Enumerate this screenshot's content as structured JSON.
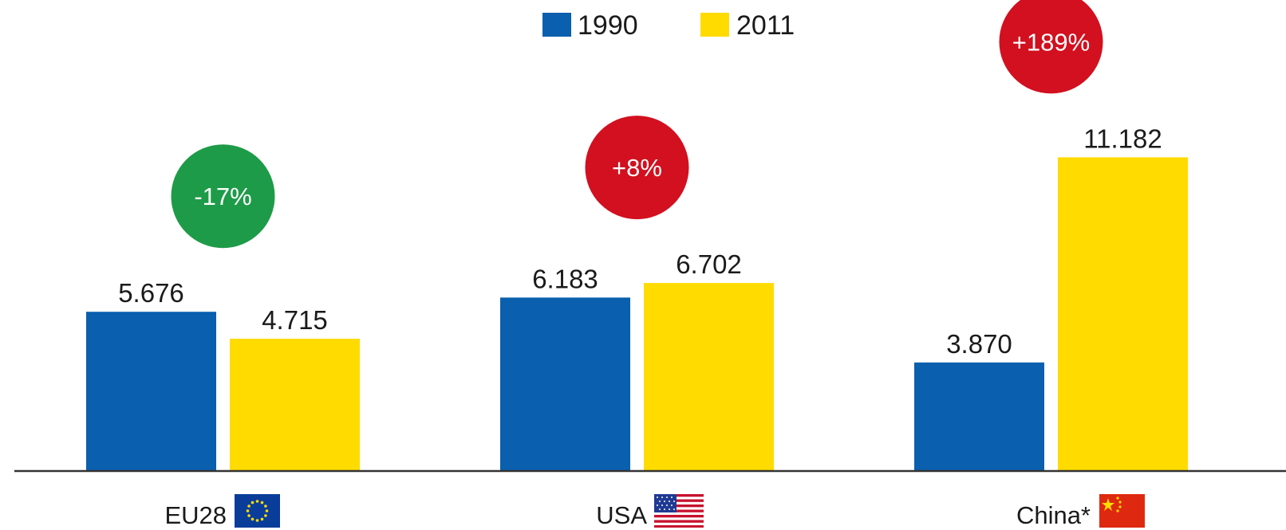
{
  "chart_data": {
    "type": "bar",
    "categories": [
      "EU28",
      "USA",
      "China*"
    ],
    "series": [
      {
        "name": "1990",
        "color": "#0a5fae",
        "values": [
          5.676,
          6.183,
          3.87
        ],
        "labels": [
          "5.676",
          "6.183",
          "3.870"
        ]
      },
      {
        "name": "2011",
        "color": "#ffdb00",
        "values": [
          4.715,
          6.702,
          11.182
        ],
        "labels": [
          "4.715",
          "6.702",
          "11.182"
        ]
      }
    ],
    "changes": [
      {
        "text": "-17%",
        "color": "#1e9b48"
      },
      {
        "text": "+8%",
        "color": "#d2101f"
      },
      {
        "text": "+189%",
        "color": "#d2101f"
      }
    ],
    "flags": [
      "eu-flag-icon",
      "us-flag-icon",
      "china-flag-icon"
    ],
    "ylim": [
      0,
      14
    ],
    "legend_position": "top-center",
    "grid": false,
    "axis_color": "#333333"
  }
}
